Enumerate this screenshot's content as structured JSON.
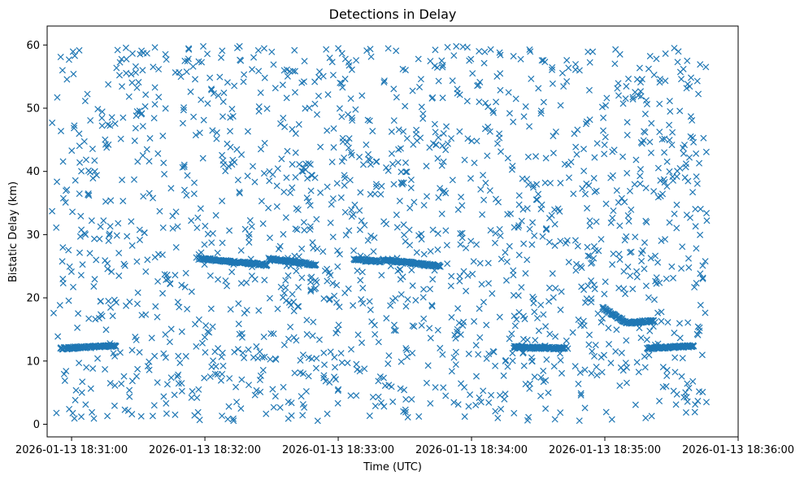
{
  "chart_data": {
    "type": "scatter",
    "title": "Detections in Delay",
    "xlabel": "Time (UTC)",
    "ylabel": "Bistatic Delay (km)",
    "marker": "x",
    "color": "#1f77b4",
    "grid": false,
    "legend": false,
    "x_start": "2026-01-13 18:30:49",
    "xlim": [
      "2026-01-13 18:30:49",
      "2026-01-13 18:36:00"
    ],
    "ylim": [
      -2,
      63
    ],
    "x_ticks": [
      "2026-01-13 18:31:00",
      "2026-01-13 18:32:00",
      "2026-01-13 18:33:00",
      "2026-01-13 18:34:00",
      "2026-01-13 18:35:00",
      "2026-01-13 18:36:00"
    ],
    "y_ticks": [
      "0",
      "10",
      "20",
      "30",
      "40",
      "50",
      "60"
    ],
    "tracks": [
      {
        "time_range": [
          "2026-01-13 18:30:55",
          "2026-01-13 18:31:20"
        ],
        "delay_km": [
          12.0,
          12.4
        ]
      },
      {
        "time_range": [
          "2026-01-13 18:31:58",
          "2026-01-13 18:32:28"
        ],
        "delay_km": [
          26.2,
          25.2
        ]
      },
      {
        "time_range": [
          "2026-01-13 18:32:29",
          "2026-01-13 18:32:50"
        ],
        "delay_km": [
          26.2,
          25.2
        ]
      },
      {
        "time_range": [
          "2026-01-13 18:33:07",
          "2026-01-13 18:33:19"
        ],
        "delay_km": [
          26.1,
          25.7
        ]
      },
      {
        "time_range": [
          "2026-01-13 18:33:20",
          "2026-01-13 18:33:46"
        ],
        "delay_km": [
          26.0,
          25.0
        ]
      },
      {
        "time_range": [
          "2026-01-13 18:34:19",
          "2026-01-13 18:34:42"
        ],
        "delay_km": [
          12.2,
          12.0
        ]
      },
      {
        "time_range": [
          "2026-01-13 18:34:59",
          "2026-01-13 18:35:10"
        ],
        "delay_km": [
          18.4,
          16.0
        ]
      },
      {
        "time_range": [
          "2026-01-13 18:35:10",
          "2026-01-13 18:35:22"
        ],
        "delay_km": [
          16.0,
          16.4
        ]
      },
      {
        "time_range": [
          "2026-01-13 18:35:19",
          "2026-01-13 18:35:40"
        ],
        "delay_km": [
          12.0,
          12.4
        ]
      }
    ],
    "background_detections": {
      "count": 1650,
      "time_range": [
        "2026-01-13 18:30:51",
        "2026-01-13 18:35:46"
      ],
      "delay_range_km": [
        0.5,
        59.8
      ]
    }
  }
}
